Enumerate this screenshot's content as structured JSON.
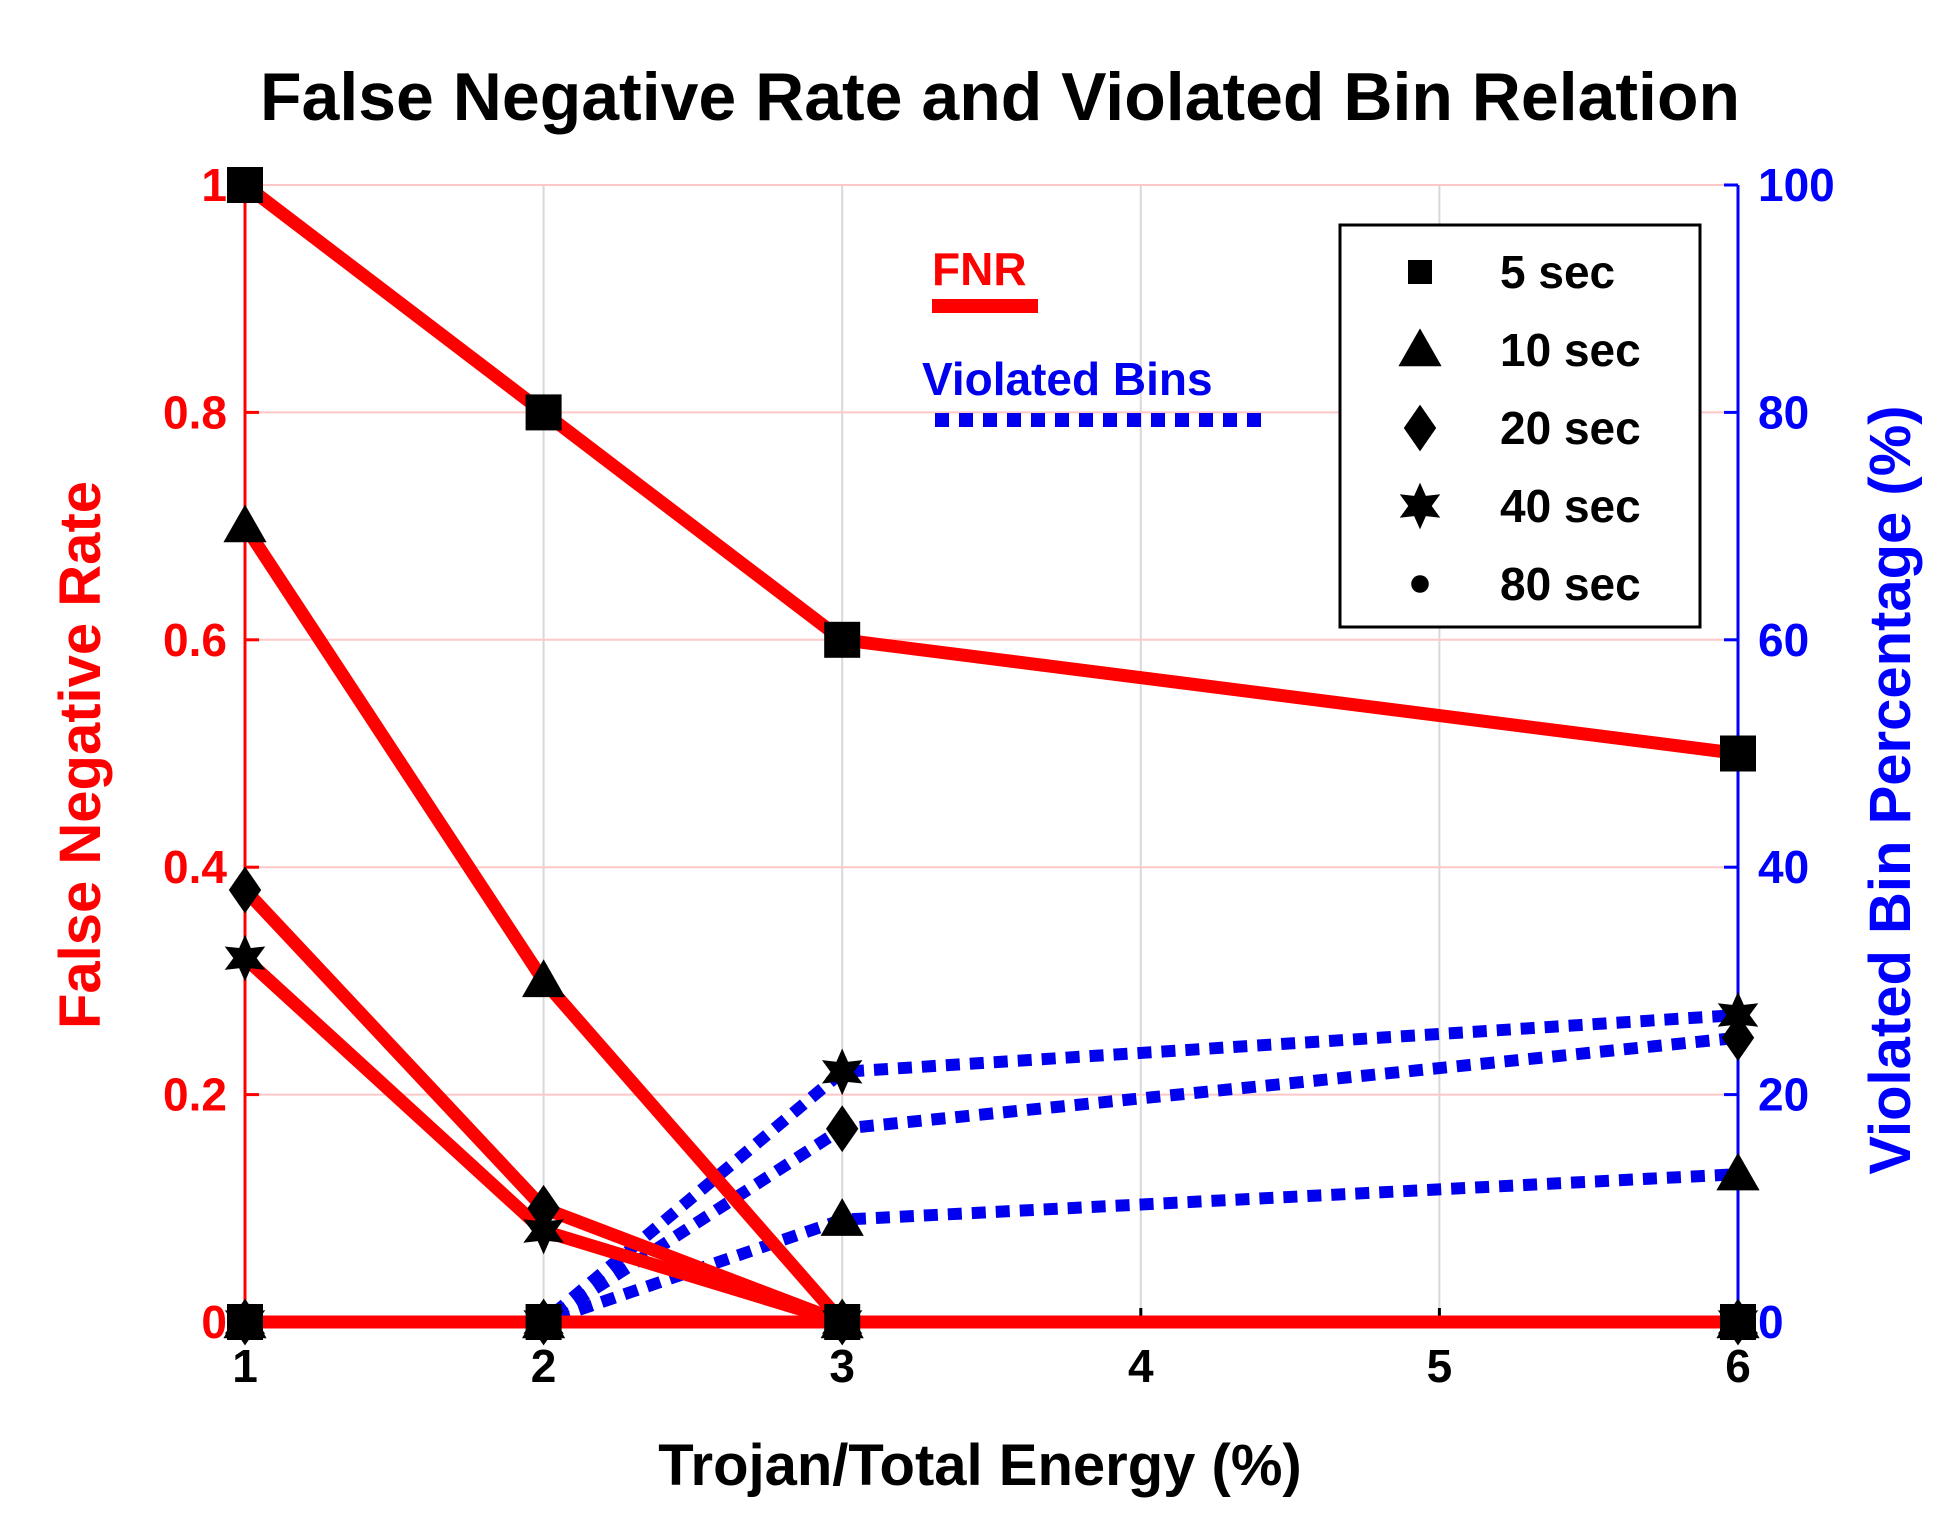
{
  "chart_data": {
    "type": "line",
    "title": "False Negative Rate and Violated Bin Relation",
    "xlabel": "Trojan/Total Energy (%)",
    "ylabel_left": "False Negative Rate",
    "ylabel_right": "Violated Bin Percentage (%)",
    "x": [
      1,
      2,
      3,
      6
    ],
    "xlim": [
      1,
      6
    ],
    "xticks": [
      1,
      2,
      3,
      4,
      5,
      6
    ],
    "ylim_left": [
      0,
      1
    ],
    "yticks_left": [
      0,
      0.2,
      0.4,
      0.6,
      0.8,
      1
    ],
    "ylim_right": [
      0,
      100
    ],
    "yticks_right": [
      0,
      20,
      40,
      60,
      80,
      100
    ],
    "grid": true,
    "colors": {
      "fnr": "#ff0000",
      "violated": "#0000ee",
      "axis_left": "#ff0000",
      "axis_right": "#0000ff",
      "grid": "#d8d8d8",
      "grid_red": "#ffc8c8"
    },
    "fnr_series": [
      {
        "name": "5 sec",
        "marker": "square",
        "values": [
          1.0,
          0.8,
          0.6,
          0.5
        ]
      },
      {
        "name": "10 sec",
        "marker": "triangle",
        "values": [
          0.7,
          0.3,
          0.0,
          0.0
        ]
      },
      {
        "name": "20 sec",
        "marker": "diamond",
        "values": [
          0.38,
          0.1,
          0.0,
          0.0
        ]
      },
      {
        "name": "40 sec",
        "marker": "hexagram",
        "values": [
          0.32,
          0.08,
          0.0,
          0.0
        ]
      },
      {
        "name": "80 sec",
        "marker": "dot",
        "values": [
          0.0,
          0.0,
          0.0,
          0.0
        ]
      }
    ],
    "violated_series": [
      {
        "name": "5 sec",
        "marker": "square",
        "values": [
          0,
          0,
          0,
          0
        ]
      },
      {
        "name": "10 sec",
        "marker": "triangle",
        "values": [
          0,
          0,
          9,
          13
        ]
      },
      {
        "name": "20 sec",
        "marker": "diamond",
        "values": [
          0,
          0,
          17,
          25
        ]
      },
      {
        "name": "40 sec",
        "marker": "hexagram",
        "values": [
          0,
          0,
          22,
          27
        ]
      },
      {
        "name": "80 sec",
        "marker": "dot",
        "values": [
          0,
          0,
          0,
          0
        ]
      }
    ],
    "legend": {
      "position": "top-right",
      "entries": [
        {
          "label": "5 sec",
          "marker": "square"
        },
        {
          "label": "10 sec",
          "marker": "triangle"
        },
        {
          "label": "20 sec",
          "marker": "diamond"
        },
        {
          "label": "40 sec",
          "marker": "hexagram"
        },
        {
          "label": "80 sec",
          "marker": "dot"
        }
      ]
    },
    "annotations": {
      "fnr_label": "FNR",
      "violated_label": "Violated Bins"
    }
  }
}
